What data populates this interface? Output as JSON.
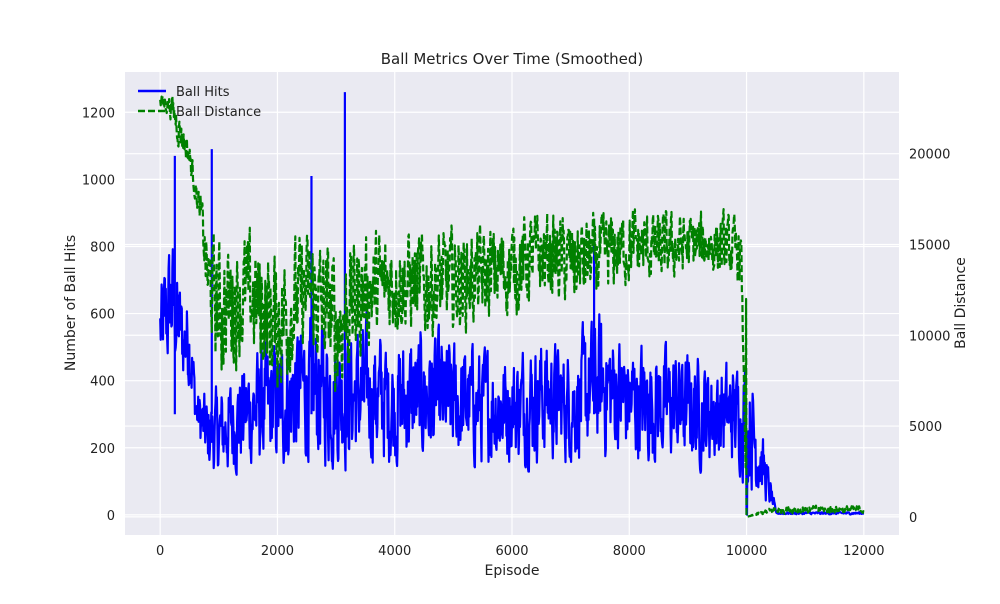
{
  "chart_data": {
    "type": "line",
    "title": "Ball Metrics Over Time (Smoothed)",
    "xlabel": "Episode",
    "ylabel_left": "Number of Ball Hits",
    "ylabel_right": "Ball Distance",
    "xlim": [
      -600,
      12600
    ],
    "ylim_left": [
      -60,
      1320
    ],
    "ylim_right": [
      -1000,
      24500
    ],
    "xticks": [
      0,
      2000,
      4000,
      6000,
      8000,
      10000,
      12000
    ],
    "yticks_left": [
      0,
      200,
      400,
      600,
      800,
      1000,
      1200
    ],
    "yticks_right": [
      0,
      5000,
      10000,
      15000,
      20000
    ],
    "grid": true,
    "legend_position": "top-left",
    "series": [
      {
        "name": "Ball Hits",
        "axis": "left",
        "color": "#0000ff",
        "style": "solid",
        "x": [
          0,
          100,
          200,
          300,
          400,
          500,
          600,
          700,
          800,
          900,
          1000,
          1500,
          2000,
          2500,
          3000,
          3500,
          4000,
          4500,
          5000,
          5500,
          6000,
          6500,
          7000,
          7500,
          8000,
          8500,
          9000,
          9500,
          9900,
          10000,
          10500,
          11000,
          11500,
          12000
        ],
        "low": [
          340,
          330,
          360,
          340,
          320,
          300,
          200,
          140,
          60,
          60,
          60,
          60,
          50,
          70,
          50,
          70,
          60,
          70,
          70,
          70,
          80,
          90,
          90,
          90,
          80,
          80,
          80,
          80,
          80,
          0,
          0,
          0,
          0,
          0
        ],
        "high": [
          760,
          850,
          930,
          800,
          700,
          760,
          420,
          410,
          410,
          430,
          420,
          560,
          600,
          700,
          660,
          650,
          600,
          640,
          600,
          580,
          560,
          620,
          560,
          700,
          600,
          580,
          560,
          520,
          520,
          610,
          10,
          10,
          10,
          10
        ]
      },
      {
        "name": "Ball Distance",
        "axis": "right",
        "color": "#008000",
        "style": "dashed",
        "x": [
          0,
          100,
          200,
          300,
          400,
          500,
          600,
          700,
          800,
          900,
          1000,
          1500,
          2000,
          2500,
          3000,
          3500,
          4000,
          4500,
          5000,
          5500,
          6000,
          6500,
          7000,
          7500,
          8000,
          8500,
          9000,
          9500,
          9900,
          10000,
          10500,
          11000,
          11500,
          12000
        ],
        "low": [
          22000,
          22000,
          21500,
          20000,
          19500,
          18500,
          17000,
          15000,
          10000,
          8000,
          6000,
          7500,
          5000,
          8000,
          5000,
          8000,
          9000,
          8500,
          9000,
          9500,
          10000,
          11000,
          10500,
          11000,
          12000,
          12000,
          12500,
          12500,
          12000,
          0,
          100,
          100,
          100,
          100
        ],
        "high": [
          23500,
          23600,
          23600,
          23000,
          22000,
          21000,
          19000,
          18000,
          16500,
          16800,
          16800,
          17000,
          16500,
          17000,
          16500,
          17000,
          17000,
          17000,
          17000,
          17000,
          17500,
          18000,
          17500,
          17500,
          18000,
          17500,
          17500,
          17500,
          17000,
          0,
          700,
          700,
          700,
          700
        ]
      }
    ],
    "spikes": [
      {
        "series": "Ball Hits",
        "x": 250,
        "y": 1070
      },
      {
        "series": "Ball Hits",
        "x": 880,
        "y": 1090
      },
      {
        "series": "Ball Hits",
        "x": 2580,
        "y": 1010
      },
      {
        "series": "Ball Hits",
        "x": 3150,
        "y": 1260
      },
      {
        "series": "Ball Hits",
        "x": 7400,
        "y": 810
      }
    ],
    "legend": [
      "Ball Hits",
      "Ball Distance"
    ]
  }
}
